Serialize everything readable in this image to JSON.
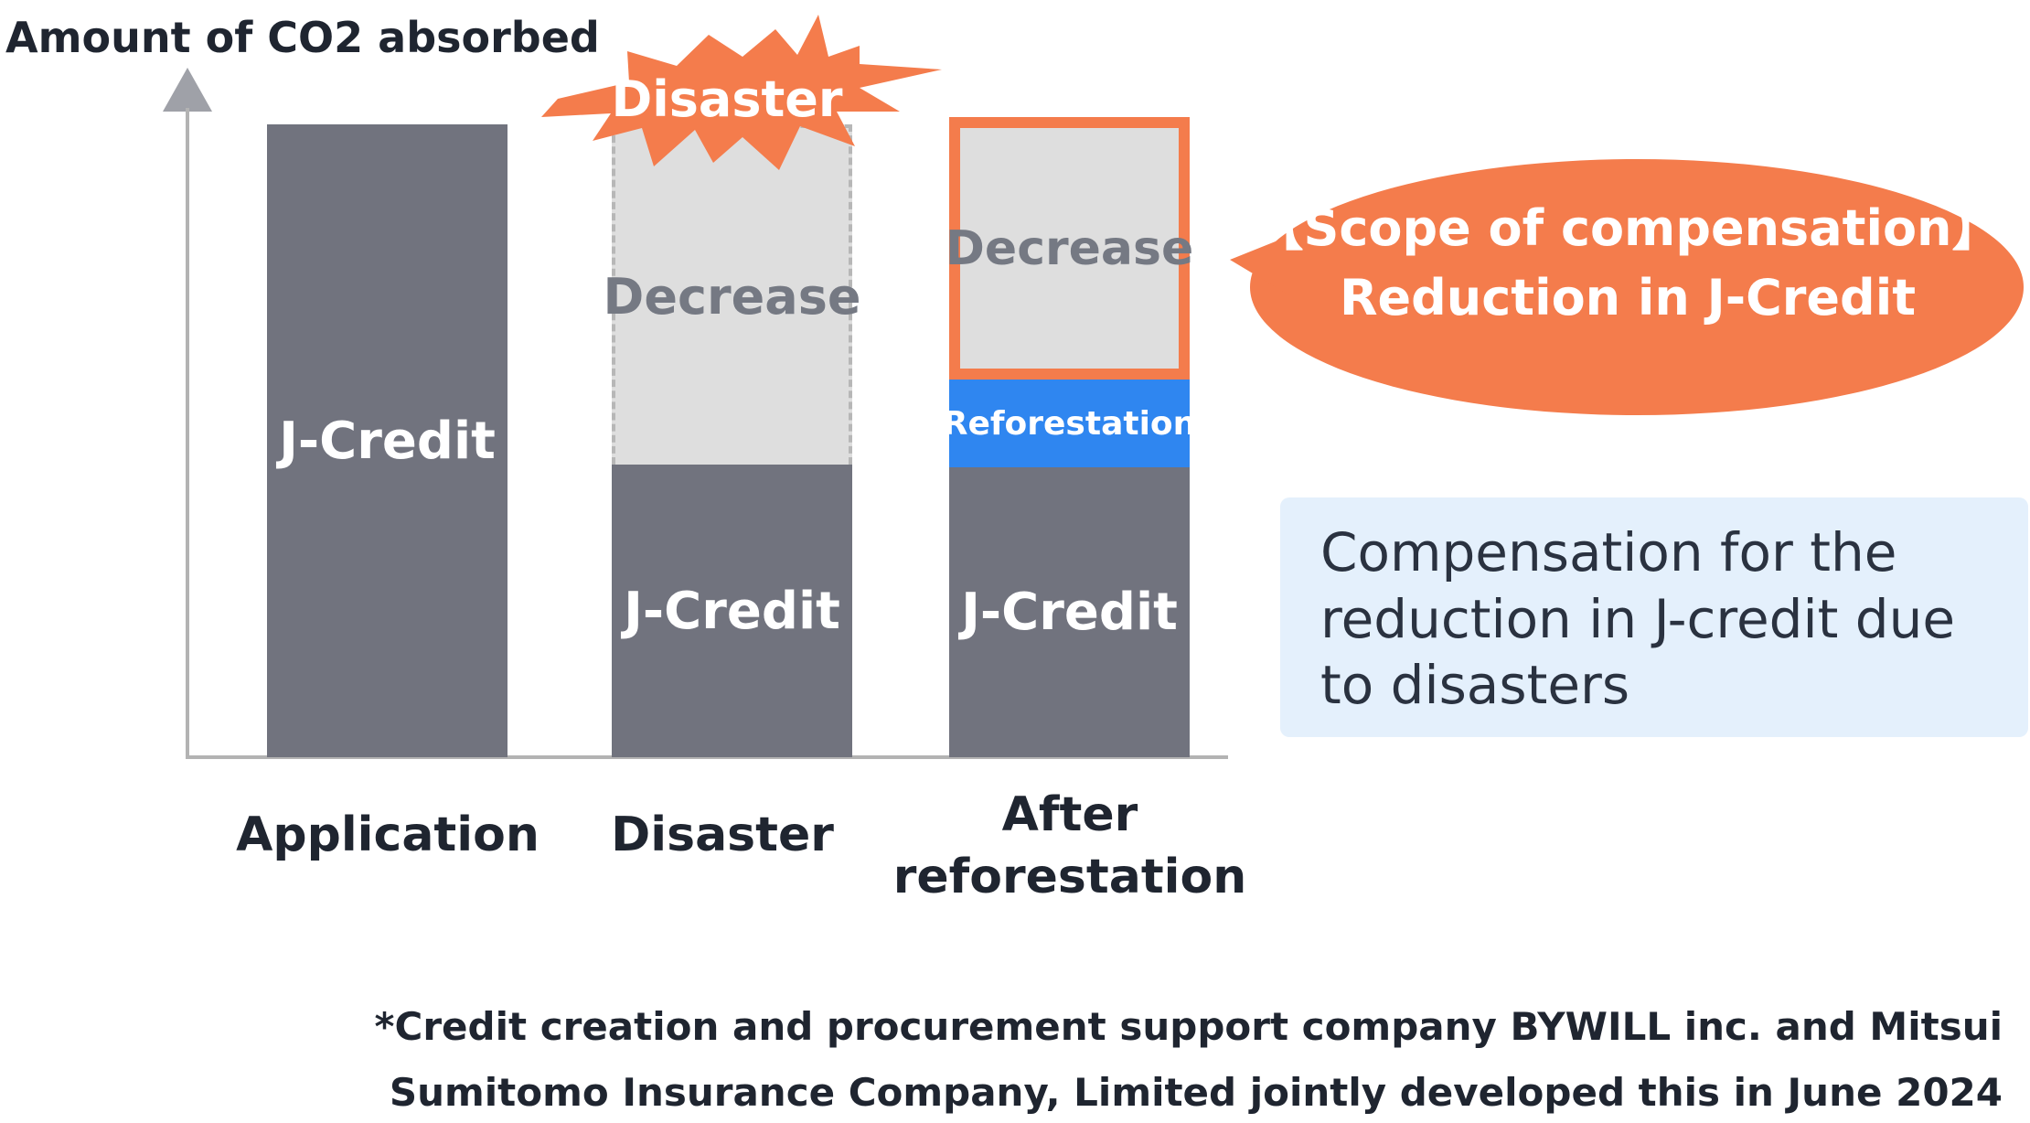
{
  "y_axis_title": "Amount of CO2 absorbed",
  "categories": [
    {
      "label_lines": [
        "Application"
      ]
    },
    {
      "label_lines": [
        "Disaster"
      ]
    },
    {
      "label_lines": [
        "After",
        "reforestation"
      ]
    }
  ],
  "segments": {
    "application_jcredit": "J-Credit",
    "disaster_jcredit": "J-Credit",
    "disaster_decrease": "Decrease",
    "after_jcredit": "J-Credit",
    "after_reforestation": "Reforestation",
    "after_decrease": "Decrease"
  },
  "burst": {
    "label": "Disaster",
    "color": "#f47c4c"
  },
  "bubble": {
    "line1": "【Scope of compensation】",
    "line2": "Reduction in J-Credit",
    "color": "#f47c4c"
  },
  "note": {
    "lines": [
      "Compensation for the",
      "reduction in J-credit due",
      "to disasters"
    ]
  },
  "footnote": {
    "line1": "*Credit creation and procurement support company BYWILL inc. and Mitsui",
    "line2": "Sumitomo Insurance Company, Limited jointly developed this in June 2024"
  },
  "colors": {
    "bar": "#71737e",
    "ghost": "#dedede",
    "reforestation": "#2f86f0",
    "accent": "#f47c4c",
    "note_bg": "#e4f0fc"
  }
}
